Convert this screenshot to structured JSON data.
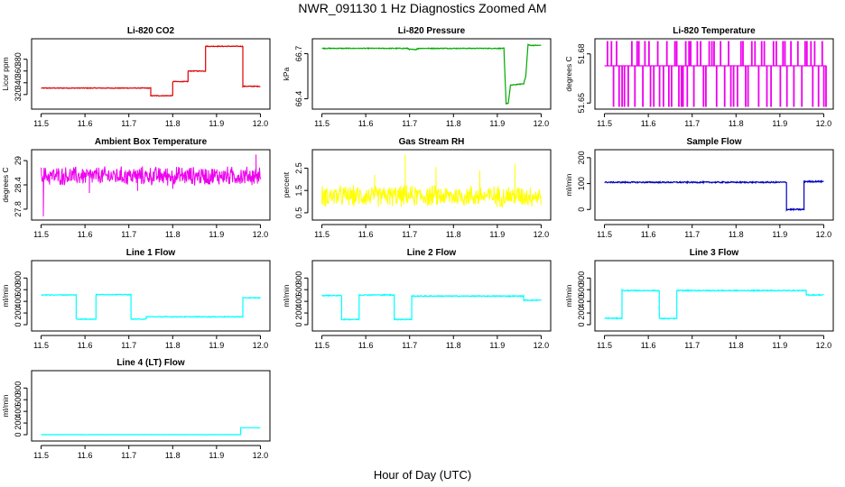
{
  "figure": {
    "title": "NWR_091130  1 Hz Diagnostics Zoomed AM",
    "xlabel": "Hour of Day (UTC)"
  },
  "chart_data": [
    {
      "type": "line",
      "title": "Li-820 CO2",
      "ylabel": "Licor ppm",
      "color": "#dd0000",
      "xlim": [
        11.5,
        12.0
      ],
      "xticks": [
        "11.5",
        "11.6",
        "11.7",
        "11.8",
        "11.9",
        "12.0"
      ],
      "ylim": [
        300,
        410
      ],
      "yticks": [
        320,
        340,
        360,
        380
      ],
      "series": [
        {
          "name": "CO2",
          "style": "step",
          "noise": 0.6,
          "x": [
            11.5,
            11.75,
            11.75,
            11.8,
            11.8,
            11.835,
            11.835,
            11.875,
            11.875,
            11.96,
            11.96,
            12.0
          ],
          "y": [
            331,
            331,
            318,
            318,
            342,
            342,
            360,
            360,
            402,
            402,
            334,
            334
          ]
        }
      ]
    },
    {
      "type": "line",
      "title": "Li-820 Pressure",
      "ylabel": "kPa",
      "color": "#00aa00",
      "xlim": [
        11.5,
        12.0
      ],
      "xticks": [
        "11.5",
        "11.6",
        "11.7",
        "11.8",
        "11.9",
        "12.0"
      ],
      "ylim": [
        66.35,
        66.78
      ],
      "yticks": [
        66.4,
        66.7
      ],
      "series": [
        {
          "name": "Pressure",
          "style": "line",
          "noise": 0.0025,
          "x": [
            11.5,
            11.695,
            11.7,
            11.715,
            11.72,
            11.915,
            11.92,
            11.925,
            11.93,
            11.96,
            11.965,
            11.97,
            11.975,
            12.0
          ],
          "y": [
            66.735,
            66.735,
            66.728,
            66.728,
            66.735,
            66.735,
            66.37,
            66.37,
            66.49,
            66.5,
            66.55,
            66.76,
            66.755,
            66.755
          ]
        }
      ]
    },
    {
      "type": "line",
      "title": "Li-820 Temperature",
      "ylabel": "degrees C",
      "color": "#ee00ee",
      "xlim": [
        11.5,
        12.0
      ],
      "xticks": [
        "11.5",
        "11.6",
        "11.7",
        "11.8",
        "11.9",
        "12.0"
      ],
      "ylim": [
        51.648,
        51.6875
      ],
      "yticks": [
        51.65,
        51.68
      ],
      "series": [
        {
          "name": "Temperature",
          "style": "binary",
          "base": 51.6727,
          "high": 51.6875,
          "low": 51.648
        }
      ]
    },
    {
      "type": "line",
      "title": "Ambient Box Temperature",
      "ylabel": "degrees C",
      "color": "#ee00ee",
      "xlim": [
        11.5,
        12.0
      ],
      "xticks": [
        "11.5",
        "11.6",
        "11.7",
        "11.8",
        "11.9",
        "12.0"
      ],
      "ylim": [
        27.6,
        29.2
      ],
      "yticks": [
        27.8,
        28.4,
        29.0
      ],
      "series": [
        {
          "name": "Ambient",
          "style": "noise",
          "mean": 28.62,
          "amp": 0.22,
          "spikes": [
            [
              11.505,
              27.62
            ],
            [
              11.61,
              28.2
            ],
            [
              11.72,
              28.25
            ],
            [
              11.8,
              28.3
            ],
            [
              11.99,
              29.15
            ]
          ]
        }
      ]
    },
    {
      "type": "line",
      "title": "Gas Stream RH",
      "ylabel": "percent",
      "color": "#ffff00",
      "xlim": [
        11.5,
        12.0
      ],
      "xticks": [
        "11.5",
        "11.6",
        "11.7",
        "11.8",
        "11.9",
        "12.0"
      ],
      "ylim": [
        0.3,
        3.2
      ],
      "yticks": [
        0.5,
        1.5,
        2.5
      ],
      "series": [
        {
          "name": "RH",
          "style": "noise",
          "mean": 1.25,
          "amp": 0.45,
          "spikes": [
            [
              11.69,
              3.1
            ],
            [
              11.76,
              2.55
            ],
            [
              11.94,
              2.7
            ],
            [
              11.86,
              2.4
            ],
            [
              11.62,
              2.2
            ]
          ]
        }
      ]
    },
    {
      "type": "line",
      "title": "Sample Flow",
      "ylabel": "ml/min",
      "color": "#0000bb",
      "xlim": [
        11.5,
        12.0
      ],
      "xticks": [
        "11.5",
        "11.6",
        "11.7",
        "11.8",
        "11.9",
        "12.0"
      ],
      "ylim": [
        -30,
        220
      ],
      "yticks": [
        0,
        100,
        200
      ],
      "series": [
        {
          "name": "Sample",
          "style": "step",
          "noise": 2.5,
          "x": [
            11.5,
            11.915,
            11.915,
            11.955,
            11.955,
            12.0
          ],
          "y": [
            105,
            105,
            0,
            0,
            108,
            108
          ]
        }
      ]
    },
    {
      "type": "line",
      "title": "Line 1 Flow",
      "ylabel": "ml/min",
      "color": "#00ffff",
      "xlim": [
        11.5,
        12.0
      ],
      "xticks": [
        "11.5",
        "11.6",
        "11.7",
        "11.8",
        "11.9",
        "12.0"
      ],
      "ylim": [
        -60,
        1050
      ],
      "yticks": [
        0,
        200,
        400,
        600,
        800
      ],
      "series": [
        {
          "name": "Line 1",
          "style": "step",
          "noise": 6,
          "x": [
            11.5,
            11.58,
            11.58,
            11.625,
            11.625,
            11.705,
            11.705,
            11.74,
            11.74,
            11.96,
            11.96,
            12.0
          ],
          "y": [
            510,
            510,
            95,
            95,
            515,
            515,
            95,
            95,
            135,
            135,
            460,
            460
          ]
        }
      ]
    },
    {
      "type": "line",
      "title": "Line 2 Flow",
      "ylabel": "ml/min",
      "color": "#00ffff",
      "xlim": [
        11.5,
        12.0
      ],
      "xticks": [
        "11.5",
        "11.6",
        "11.7",
        "11.8",
        "11.9",
        "12.0"
      ],
      "ylim": [
        -60,
        1050
      ],
      "yticks": [
        0,
        200,
        400,
        600,
        800
      ],
      "series": [
        {
          "name": "Line 2",
          "style": "step",
          "noise": 8,
          "x": [
            11.5,
            11.545,
            11.545,
            11.585,
            11.585,
            11.665,
            11.665,
            11.705,
            11.705,
            11.96,
            11.96,
            12.0
          ],
          "y": [
            500,
            500,
            90,
            90,
            510,
            510,
            90,
            90,
            490,
            490,
            420,
            420
          ]
        }
      ]
    },
    {
      "type": "line",
      "title": "Line 3 Flow",
      "ylabel": "ml/min",
      "color": "#00ffff",
      "xlim": [
        11.5,
        12.0
      ],
      "xticks": [
        "11.5",
        "11.6",
        "11.7",
        "11.8",
        "11.9",
        "12.0"
      ],
      "ylim": [
        -60,
        1050
      ],
      "yticks": [
        0,
        200,
        400,
        600,
        800
      ],
      "series": [
        {
          "name": "Line 3",
          "style": "step",
          "noise": 8,
          "x": [
            11.5,
            11.54,
            11.54,
            11.625,
            11.625,
            11.665,
            11.665,
            11.96,
            11.96,
            12.0
          ],
          "y": [
            110,
            110,
            585,
            585,
            105,
            105,
            585,
            585,
            510,
            510
          ]
        }
      ]
    },
    {
      "type": "line",
      "title": "Line 4 (LT) Flow",
      "ylabel": "ml/min",
      "color": "#00ffff",
      "xlim": [
        11.5,
        12.0
      ],
      "xticks": [
        "11.5",
        "11.6",
        "11.7",
        "11.8",
        "11.9",
        "12.0"
      ],
      "ylim": [
        -60,
        1050
      ],
      "yticks": [
        0,
        200,
        400,
        600,
        800
      ],
      "series": [
        {
          "name": "Line 4",
          "style": "step",
          "noise": 2,
          "x": [
            11.5,
            11.955,
            11.955,
            12.0
          ],
          "y": [
            0,
            0,
            120,
            120
          ]
        }
      ]
    }
  ]
}
